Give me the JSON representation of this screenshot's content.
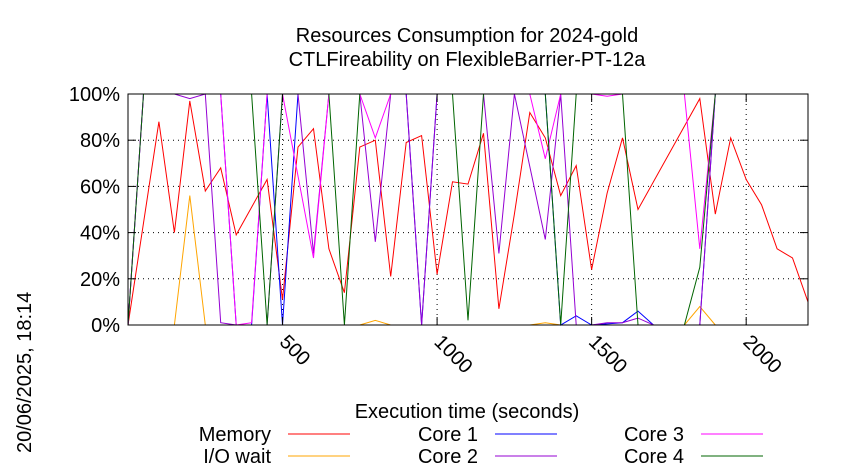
{
  "chart_data": {
    "type": "line",
    "title": "Resources Consumption for 2024-gold",
    "subtitle": "CTLFireability on FlexibleBarrier-PT-12a",
    "xlabel": "Execution time (seconds)",
    "ylabel": "",
    "side_label": "20/06/2025, 18:14",
    "xlim": [
      0,
      2200
    ],
    "ylim": [
      0,
      100
    ],
    "x_ticks": [
      500,
      1000,
      1500,
      2000
    ],
    "y_ticks": [
      {
        "value": 0,
        "label": "0%"
      },
      {
        "value": 20,
        "label": "20%"
      },
      {
        "value": 40,
        "label": "40%"
      },
      {
        "value": 60,
        "label": "60%"
      },
      {
        "value": 80,
        "label": "80%"
      },
      {
        "value": 100,
        "label": "100%"
      }
    ],
    "grid": true,
    "legend_position": "bottom",
    "series": [
      {
        "name": "Memory",
        "color": "#ff0000",
        "points": [
          [
            0,
            0
          ],
          [
            100,
            88
          ],
          [
            150,
            40
          ],
          [
            200,
            97
          ],
          [
            250,
            58
          ],
          [
            300,
            68
          ],
          [
            350,
            39
          ],
          [
            400,
            51
          ],
          [
            450,
            63
          ],
          [
            500,
            11
          ],
          [
            550,
            77
          ],
          [
            600,
            85
          ],
          [
            650,
            33
          ],
          [
            700,
            14
          ],
          [
            750,
            77
          ],
          [
            800,
            80
          ],
          [
            850,
            21
          ],
          [
            900,
            79
          ],
          [
            950,
            82
          ],
          [
            1000,
            22
          ],
          [
            1050,
            62
          ],
          [
            1100,
            61
          ],
          [
            1150,
            83
          ],
          [
            1200,
            7
          ],
          [
            1250,
            48
          ],
          [
            1300,
            92
          ],
          [
            1350,
            81
          ],
          [
            1400,
            56
          ],
          [
            1450,
            69
          ],
          [
            1500,
            24
          ],
          [
            1550,
            57
          ],
          [
            1600,
            81
          ],
          [
            1650,
            50
          ],
          [
            1850,
            98
          ],
          [
            1900,
            48
          ],
          [
            1950,
            81
          ],
          [
            2000,
            63
          ],
          [
            2050,
            52
          ],
          [
            2100,
            33
          ],
          [
            2150,
            29
          ],
          [
            2200,
            10
          ]
        ]
      },
      {
        "name": "I/O wait",
        "color": "#ffa500",
        "points": [
          [
            0,
            0
          ],
          [
            150,
            0
          ],
          [
            200,
            56
          ],
          [
            250,
            0
          ],
          [
            750,
            0
          ],
          [
            800,
            2
          ],
          [
            850,
            0
          ],
          [
            1300,
            0
          ],
          [
            1350,
            1
          ],
          [
            1400,
            0
          ],
          [
            1800,
            0
          ],
          [
            1850,
            8
          ],
          [
            1900,
            0
          ]
        ]
      },
      {
        "name": "Core 1",
        "color": "#0000ff",
        "points": [
          [
            0,
            0
          ],
          [
            50,
            100
          ],
          [
            250,
            100
          ],
          [
            300,
            100
          ],
          [
            350,
            0
          ],
          [
            400,
            0
          ],
          [
            450,
            100
          ],
          [
            500,
            0
          ],
          [
            550,
            100
          ],
          [
            900,
            100
          ],
          [
            950,
            0
          ],
          [
            1000,
            100
          ],
          [
            1350,
            100
          ],
          [
            1400,
            0
          ],
          [
            1450,
            4
          ],
          [
            1500,
            0
          ],
          [
            1600,
            1
          ],
          [
            1650,
            6
          ],
          [
            1700,
            0
          ],
          [
            1850,
            0
          ],
          [
            1900,
            100
          ],
          [
            2200,
            100
          ]
        ]
      },
      {
        "name": "Core 2",
        "color": "#9400d3",
        "points": [
          [
            0,
            0
          ],
          [
            50,
            100
          ],
          [
            150,
            100
          ],
          [
            200,
            98
          ],
          [
            250,
            100
          ],
          [
            300,
            1
          ],
          [
            350,
            0
          ],
          [
            450,
            0
          ],
          [
            500,
            100
          ],
          [
            550,
            100
          ],
          [
            600,
            31
          ],
          [
            650,
            100
          ],
          [
            750,
            100
          ],
          [
            800,
            36
          ],
          [
            850,
            100
          ],
          [
            900,
            100
          ],
          [
            950,
            0
          ],
          [
            1000,
            100
          ],
          [
            1150,
            100
          ],
          [
            1200,
            31
          ],
          [
            1250,
            100
          ],
          [
            1350,
            37
          ],
          [
            1400,
            100
          ],
          [
            1450,
            0
          ],
          [
            1500,
            0
          ],
          [
            1550,
            1
          ],
          [
            1600,
            1
          ],
          [
            1650,
            3
          ],
          [
            1700,
            0
          ],
          [
            1850,
            0
          ],
          [
            1900,
            100
          ],
          [
            2200,
            100
          ]
        ]
      },
      {
        "name": "Core 3",
        "color": "#ff00ff",
        "points": [
          [
            0,
            0
          ],
          [
            50,
            100
          ],
          [
            200,
            100
          ],
          [
            250,
            100
          ],
          [
            300,
            100
          ],
          [
            350,
            0
          ],
          [
            400,
            1
          ],
          [
            450,
            100
          ],
          [
            500,
            100
          ],
          [
            600,
            29
          ],
          [
            650,
            100
          ],
          [
            750,
            100
          ],
          [
            800,
            81
          ],
          [
            850,
            100
          ],
          [
            900,
            100
          ],
          [
            1300,
            100
          ],
          [
            1350,
            72
          ],
          [
            1400,
            100
          ],
          [
            1500,
            100
          ],
          [
            1550,
            99
          ],
          [
            1600,
            100
          ],
          [
            1700,
            100
          ],
          [
            1800,
            100
          ],
          [
            1850,
            33
          ],
          [
            1900,
            100
          ],
          [
            2200,
            100
          ]
        ]
      },
      {
        "name": "Core 4",
        "color": "#006400",
        "points": [
          [
            0,
            0
          ],
          [
            50,
            100
          ],
          [
            300,
            100
          ],
          [
            350,
            100
          ],
          [
            400,
            100
          ],
          [
            450,
            0
          ],
          [
            500,
            100
          ],
          [
            650,
            100
          ],
          [
            700,
            0
          ],
          [
            750,
            100
          ],
          [
            1050,
            100
          ],
          [
            1100,
            2
          ],
          [
            1150,
            100
          ],
          [
            1350,
            100
          ],
          [
            1400,
            0
          ],
          [
            1450,
            100
          ],
          [
            1600,
            100
          ],
          [
            1650,
            0
          ],
          [
            1800,
            0
          ],
          [
            1850,
            25
          ],
          [
            1900,
            100
          ],
          [
            2200,
            100
          ]
        ]
      }
    ]
  }
}
